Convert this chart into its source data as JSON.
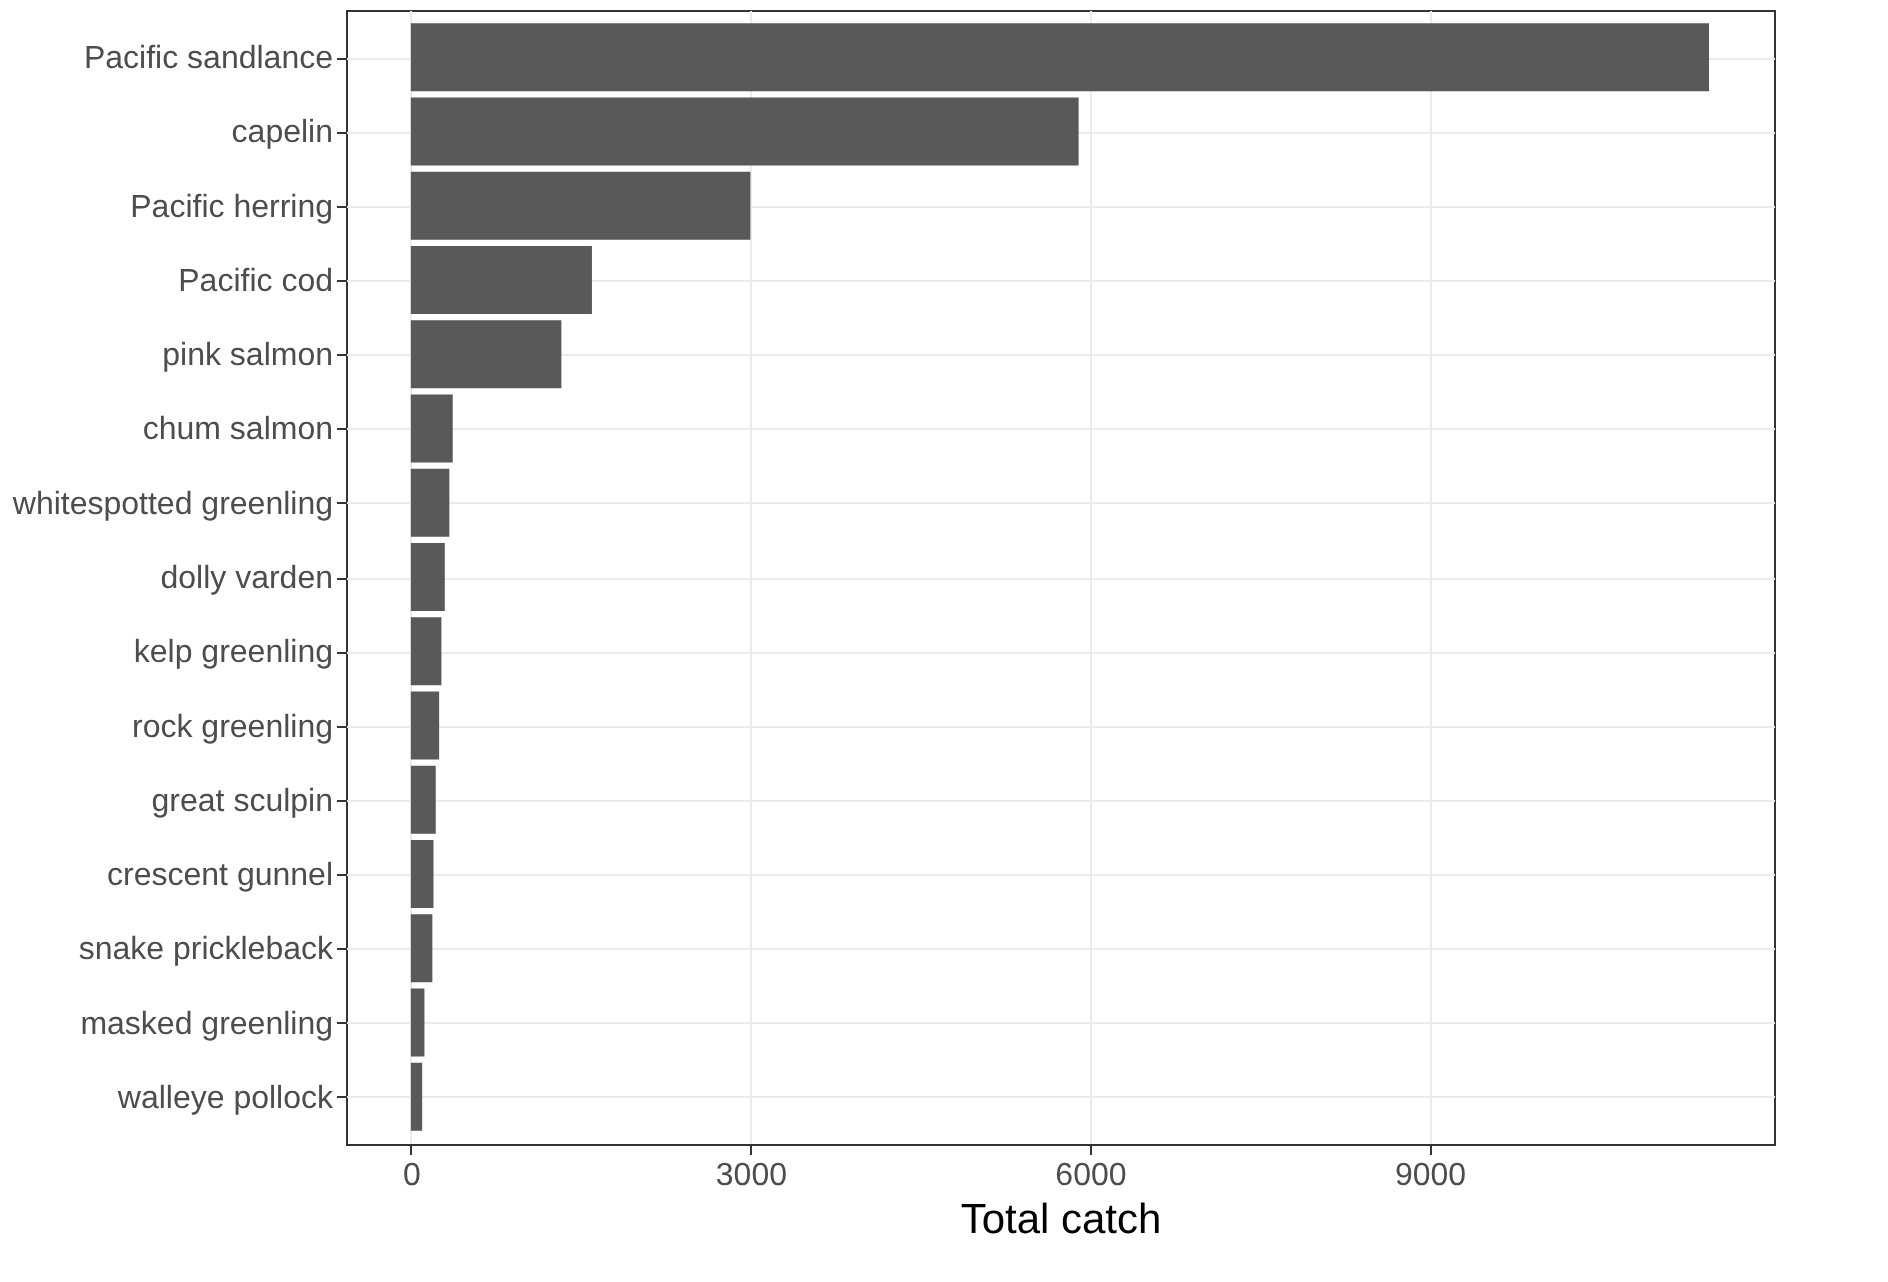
{
  "chart_data": {
    "type": "bar",
    "orientation": "horizontal",
    "xlabel": "Total catch",
    "categories": [
      "Pacific sandlance",
      "capelin",
      "Pacific herring",
      "Pacific cod",
      "pink salmon",
      "chum salmon",
      "whitespotted greenling",
      "dolly varden",
      "kelp greenling",
      "rock greenling",
      "great sculpin",
      "crescent gunnel",
      "snake prickleback",
      "masked greenling",
      "walleye pollock"
    ],
    "values": [
      11470,
      5900,
      3000,
      1600,
      1330,
      370,
      340,
      300,
      270,
      250,
      220,
      200,
      190,
      120,
      100
    ],
    "color": "#595959",
    "xlim": [
      -573,
      12044
    ],
    "xticks": [
      0,
      3000,
      6000,
      9000
    ],
    "grid": true
  }
}
